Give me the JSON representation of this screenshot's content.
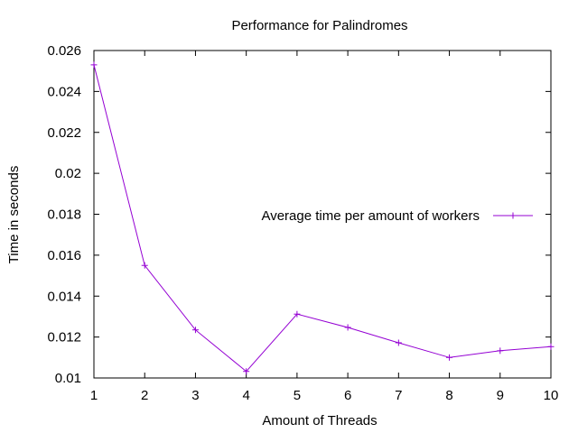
{
  "chart_data": {
    "type": "line",
    "title": "Performance for Palindromes",
    "xlabel": "Amount of Threads",
    "ylabel": "Time in seconds",
    "xlim": [
      1,
      10
    ],
    "ylim": [
      0.01,
      0.026
    ],
    "x_ticks": [
      "1",
      "2",
      "3",
      "4",
      "5",
      "6",
      "7",
      "8",
      "9",
      "10"
    ],
    "y_ticks": [
      "0.01",
      "0.012",
      "0.014",
      "0.016",
      "0.018",
      "0.02",
      "0.022",
      "0.024",
      "0.026"
    ],
    "grid": false,
    "legend_position": "right",
    "series": [
      {
        "name": "Average time per amount of workers",
        "color": "#9400d3",
        "marker": "plus",
        "x": [
          1,
          2,
          3,
          4,
          5,
          6,
          7,
          8,
          9,
          10
        ],
        "y": [
          0.0253,
          0.0155,
          0.01235,
          0.01032,
          0.01312,
          0.01247,
          0.01172,
          0.011,
          0.01133,
          0.01153
        ]
      }
    ]
  }
}
